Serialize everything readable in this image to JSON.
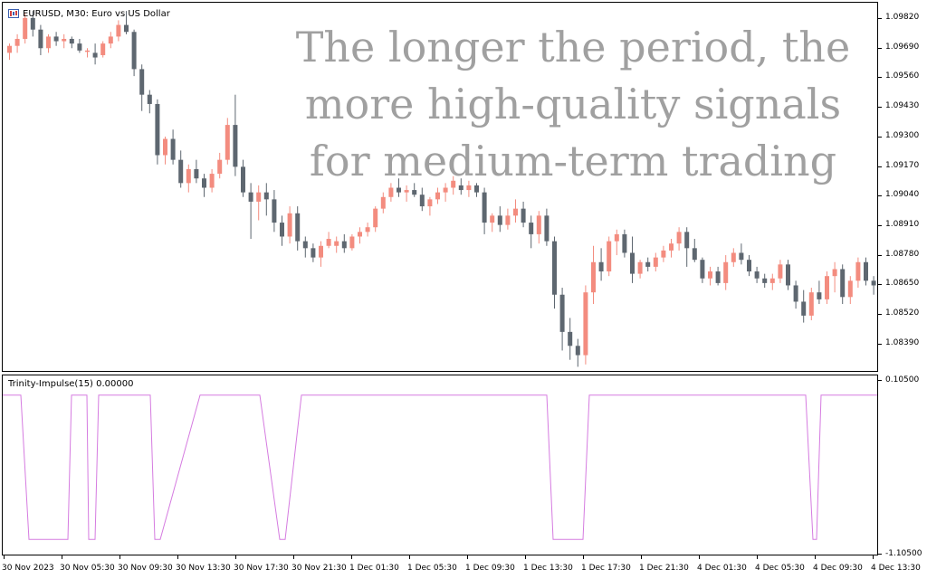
{
  "window": {
    "title": "EURUSD, M30:  Euro vs US Dollar",
    "overlay_text": "The longer the period, the more high-quality signals for medium-term trading"
  },
  "indicator": {
    "title": "Trinity-Impulse(15) 0.00000",
    "ymax_label": "0.10500",
    "ymin_label": "-1.10500"
  },
  "colors": {
    "bull": "#f38c7f",
    "bear": "#5e6770",
    "indicator": "#d57be0",
    "overlay": "#a0a0a0"
  },
  "price_axis": [
    "1.09820",
    "1.09690",
    "1.09560",
    "1.09430",
    "1.09300",
    "1.09170",
    "1.09040",
    "1.08910",
    "1.08780",
    "1.08650",
    "1.08520",
    "1.08390"
  ],
  "time_axis": [
    "30 Nov 2023",
    "30 Nov 05:30",
    "30 Nov 09:30",
    "30 Nov 13:30",
    "30 Nov 17:30",
    "30 Nov 21:30",
    "1 Dec 01:30",
    "1 Dec 05:30",
    "1 Dec 09:30",
    "1 Dec 13:30",
    "1 Dec 17:30",
    "1 Dec 21:30",
    "4 Dec 01:30",
    "4 Dec 05:30",
    "4 Dec 09:30",
    "4 Dec 13:30"
  ],
  "chart_data": [
    {
      "type": "candlestick",
      "symbol": "EURUSD",
      "timeframe": "M30",
      "ylim": [
        1.0832,
        1.0988
      ],
      "candles": [
        [
          1.0968,
          1.0972,
          1.0965,
          1.0971
        ],
        [
          1.0971,
          1.0976,
          1.0968,
          1.0974
        ],
        [
          1.0974,
          1.0985,
          1.0972,
          1.0983
        ],
        [
          1.0983,
          1.0986,
          1.0975,
          1.0978
        ],
        [
          1.0978,
          1.098,
          1.0967,
          1.097
        ],
        [
          1.097,
          1.0976,
          1.0968,
          1.0975
        ],
        [
          1.0975,
          1.0977,
          1.0971,
          1.0973
        ],
        [
          1.0973,
          1.0976,
          1.097,
          1.0974
        ],
        [
          1.0974,
          1.0975,
          1.097,
          1.0972
        ],
        [
          1.0972,
          1.0974,
          1.0968,
          1.0969
        ],
        [
          1.0969,
          1.097,
          1.0966,
          1.0969
        ],
        [
          1.0968,
          1.0972,
          1.0963,
          1.0966
        ],
        [
          1.0967,
          1.0973,
          1.0966,
          1.0972
        ],
        [
          1.0972,
          1.0977,
          1.097,
          1.0975
        ],
        [
          1.0975,
          1.0982,
          1.0973,
          1.098
        ],
        [
          1.098,
          1.0986,
          1.0976,
          1.0977
        ],
        [
          1.0977,
          1.0978,
          1.0958,
          1.0961
        ],
        [
          1.0961,
          1.0963,
          1.0943,
          1.095
        ],
        [
          1.095,
          1.0952,
          1.0942,
          1.0946
        ],
        [
          1.0946,
          1.0948,
          1.092,
          1.0924
        ],
        [
          1.0924,
          1.0932,
          1.092,
          1.0931
        ],
        [
          1.0931,
          1.0935,
          1.092,
          1.0922
        ],
        [
          1.0922,
          1.0926,
          1.091,
          1.0912
        ],
        [
          1.0912,
          1.092,
          1.0908,
          1.0918
        ],
        [
          1.0918,
          1.0922,
          1.0912,
          1.0914
        ],
        [
          1.0914,
          1.0916,
          1.0906,
          1.091
        ],
        [
          1.091,
          1.0918,
          1.0908,
          1.0916
        ],
        [
          1.0916,
          1.0925,
          1.0914,
          1.0922
        ],
        [
          1.0922,
          1.094,
          1.092,
          1.0937
        ],
        [
          1.0937,
          1.095,
          1.0915,
          1.0919
        ],
        [
          1.0919,
          1.0922,
          1.0906,
          1.0908
        ],
        [
          1.0908,
          1.0912,
          1.0888,
          1.0904
        ],
        [
          1.0904,
          1.0911,
          1.0896,
          1.0908
        ],
        [
          1.0908,
          1.0912,
          1.0898,
          1.0905
        ],
        [
          1.0905,
          1.0909,
          1.0891,
          1.0895
        ],
        [
          1.0895,
          1.0898,
          1.0885,
          1.0889
        ],
        [
          1.0889,
          1.0902,
          1.0886,
          1.0899
        ],
        [
          1.0899,
          1.0902,
          1.0883,
          1.0887
        ],
        [
          1.0887,
          1.0889,
          1.088,
          1.0884
        ],
        [
          1.0884,
          1.0886,
          1.0878,
          1.088
        ],
        [
          1.088,
          1.0887,
          1.0876,
          1.0885
        ],
        [
          1.0885,
          1.0891,
          1.0884,
          1.0888
        ],
        [
          1.0885,
          1.0889,
          1.0882,
          1.0887
        ],
        [
          1.0887,
          1.089,
          1.0882,
          1.0884
        ],
        [
          1.0884,
          1.089,
          1.0883,
          1.0889
        ],
        [
          1.0889,
          1.0893,
          1.0886,
          1.0891
        ],
        [
          1.0891,
          1.0895,
          1.0889,
          1.0893
        ],
        [
          1.0893,
          1.0902,
          1.0891,
          1.0901
        ],
        [
          1.0901,
          1.0908,
          1.0899,
          1.0906
        ],
        [
          1.0906,
          1.0912,
          1.0904,
          1.091
        ],
        [
          1.091,
          1.0914,
          1.0906,
          1.0908
        ],
        [
          1.0908,
          1.0911,
          1.0904,
          1.0909
        ],
        [
          1.0909,
          1.0912,
          1.0906,
          1.0907
        ],
        [
          1.0907,
          1.091,
          1.09,
          1.0902
        ],
        [
          1.0902,
          1.0906,
          1.0898,
          1.0905
        ],
        [
          1.0905,
          1.091,
          1.0903,
          1.0908
        ],
        [
          1.0908,
          1.0912,
          1.0904,
          1.091
        ],
        [
          1.091,
          1.0915,
          1.0907,
          1.0913
        ],
        [
          1.0911,
          1.0914,
          1.0907,
          1.0909
        ],
        [
          1.0909,
          1.0913,
          1.0906,
          1.0911
        ],
        [
          1.0911,
          1.0912,
          1.0906,
          1.0908
        ],
        [
          1.0908,
          1.091,
          1.089,
          1.0895
        ],
        [
          1.0895,
          1.0899,
          1.0891,
          1.0898
        ],
        [
          1.0898,
          1.0902,
          1.0891,
          1.0894
        ],
        [
          1.0894,
          1.0901,
          1.0892,
          1.0898
        ],
        [
          1.0898,
          1.0905,
          1.0895,
          1.0901
        ],
        [
          1.0901,
          1.0904,
          1.0893,
          1.0895
        ],
        [
          1.0895,
          1.0898,
          1.0884,
          1.089
        ],
        [
          1.089,
          1.09,
          1.0886,
          1.0898
        ],
        [
          1.0898,
          1.0901,
          1.0885,
          1.0887
        ],
        [
          1.0887,
          1.0889,
          1.0858,
          1.0864
        ],
        [
          1.0864,
          1.0867,
          1.084,
          1.0848
        ],
        [
          1.0848,
          1.0854,
          1.0836,
          1.0842
        ],
        [
          1.0842,
          1.0845,
          1.0833,
          1.0838
        ],
        [
          1.0838,
          1.0868,
          1.0834,
          1.0865
        ],
        [
          1.0865,
          1.0885,
          1.086,
          1.0878
        ],
        [
          1.0878,
          1.0884,
          1.087,
          1.0874
        ],
        [
          1.0874,
          1.0889,
          1.0872,
          1.0887
        ],
        [
          1.0887,
          1.0892,
          1.0881,
          1.089
        ],
        [
          1.089,
          1.0892,
          1.088,
          1.0882
        ],
        [
          1.0882,
          1.0889,
          1.0869,
          1.0873
        ],
        [
          1.0873,
          1.0879,
          1.0871,
          1.0878
        ],
        [
          1.0878,
          1.088,
          1.0874,
          1.0876
        ],
        [
          1.0876,
          1.0882,
          1.0874,
          1.088
        ],
        [
          1.088,
          1.0885,
          1.0878,
          1.0883
        ],
        [
          1.0883,
          1.0888,
          1.088,
          1.0886
        ],
        [
          1.0886,
          1.0893,
          1.0883,
          1.0891
        ],
        [
          1.0891,
          1.0893,
          1.0876,
          1.0884
        ],
        [
          1.0884,
          1.0888,
          1.0878,
          1.0879
        ],
        [
          1.0879,
          1.088,
          1.0869,
          1.0871
        ],
        [
          1.0871,
          1.0876,
          1.0868,
          1.0874
        ],
        [
          1.0874,
          1.0876,
          1.0868,
          1.0869
        ],
        [
          1.0869,
          1.0881,
          1.0866,
          1.0878
        ],
        [
          1.0878,
          1.0884,
          1.0876,
          1.0882
        ],
        [
          1.0882,
          1.0886,
          1.0877,
          1.0879
        ],
        [
          1.0879,
          1.0881,
          1.0872,
          1.0874
        ],
        [
          1.0874,
          1.0876,
          1.0869,
          1.0871
        ],
        [
          1.0871,
          1.0873,
          1.0867,
          1.0869
        ],
        [
          1.0869,
          1.0873,
          1.0866,
          1.0871
        ],
        [
          1.0871,
          1.0879,
          1.0869,
          1.0877
        ],
        [
          1.0877,
          1.0879,
          1.0866,
          1.0868
        ],
        [
          1.0868,
          1.087,
          1.0858,
          1.0861
        ],
        [
          1.0861,
          1.0866,
          1.0852,
          1.0855
        ],
        [
          1.0855,
          1.0867,
          1.0853,
          1.0865
        ],
        [
          1.0865,
          1.087,
          1.086,
          1.0862
        ],
        [
          1.0862,
          1.0874,
          1.086,
          1.0872
        ],
        [
          1.0872,
          1.0878,
          1.0865,
          1.0875
        ],
        [
          1.0875,
          1.0877,
          1.086,
          1.0863
        ],
        [
          1.0863,
          1.0872,
          1.086,
          1.087
        ],
        [
          1.087,
          1.088,
          1.0867,
          1.0878
        ],
        [
          1.0878,
          1.088,
          1.0868,
          1.087
        ],
        [
          1.087,
          1.0872,
          1.0864,
          1.0868
        ]
      ]
    },
    {
      "type": "line",
      "name": "Trinity-Impulse(15)",
      "ylim": [
        -1.105,
        0.105
      ],
      "x": [
        0,
        20,
        29,
        38,
        45,
        53,
        60,
        64,
        69,
        72,
        76,
        81,
        89,
        93,
        95,
        97,
        100,
        102,
        106,
        111,
        135,
        163,
        168,
        174,
        218,
        233,
        272,
        284,
        306,
        312,
        330,
        360,
        440,
        500,
        601,
        608,
        641,
        648,
        680,
        711,
        800,
        887,
        895,
        899,
        904,
        970
      ],
      "values": [
        0,
        0,
        -1,
        -1,
        -1,
        -1,
        -1,
        -1,
        -1,
        -1,
        0,
        0,
        0,
        0,
        -1,
        -1,
        -1,
        -1,
        0,
        0,
        0,
        0,
        -1,
        -1,
        0,
        0,
        0,
        0,
        -1,
        -1,
        0,
        0,
        0,
        0,
        0,
        -1,
        -1,
        0,
        0,
        0,
        0,
        0,
        -1,
        -1,
        0,
        0
      ]
    }
  ]
}
